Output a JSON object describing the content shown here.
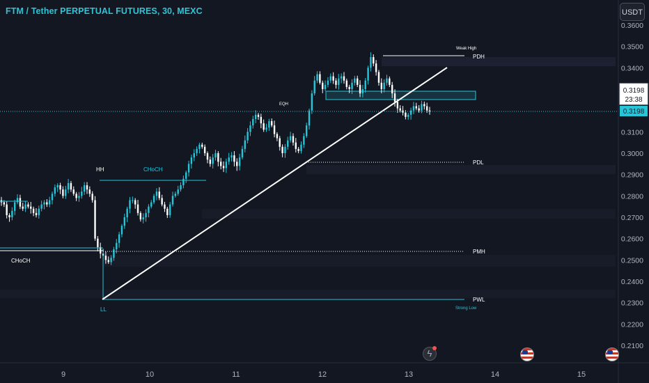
{
  "header": {
    "title": "FTM / Tether PERPETUAL FUTURES, 30, MEXC",
    "currency_button": "USDT"
  },
  "colors": {
    "background": "#131722",
    "up": "#26c6da",
    "down": "#ffffff",
    "structure_line": "#26c6da",
    "trendline": "#ffffff",
    "text": "#ffffff",
    "price_badge": "#26c6da"
  },
  "price_axis": {
    "ticks": [
      "0.3600",
      "0.3500",
      "0.3400",
      "0.3300",
      "0.3200",
      "0.3100",
      "0.3000",
      "0.2900",
      "0.2800",
      "0.2700",
      "0.2600",
      "0.2500",
      "0.2400",
      "0.2300",
      "0.2200",
      "0.2100"
    ],
    "current_price_box": "0.3198",
    "countdown": "23:38",
    "last_price_badge": "0.3198"
  },
  "time_axis": {
    "ticks": [
      "9",
      "10",
      "11",
      "12",
      "13",
      "14",
      "15"
    ]
  },
  "annotations": {
    "weak_high": "Weak High",
    "pdh": "PDH",
    "eqh": "EQH",
    "hh": "HH",
    "choch_upper": "CHoCH",
    "choch_lower": "CHoCH",
    "pdl": "PDL",
    "pmh": "PMH",
    "pwl": "PWL",
    "strong_low": "Strong Low",
    "ll": "LL"
  },
  "event_icons": [
    "lightning-icon",
    "us-flag-icon",
    "us-flag-icon"
  ],
  "chart_data": {
    "type": "candlestick",
    "title": "FTM / Tether PERPETUAL FUTURES, 30, MEXC",
    "y_range": [
      0.2,
      0.365
    ],
    "y_scale": "linear",
    "x_ticks": [
      "9",
      "10",
      "11",
      "12",
      "13",
      "14",
      "15"
    ],
    "last_price": 0.3198,
    "grid": false,
    "levels": [
      {
        "label": "PDH",
        "price": 0.3455
      },
      {
        "label": "PDL",
        "price": 0.296
      },
      {
        "label": "PMH",
        "price": 0.2545
      },
      {
        "label": "PWL",
        "price": 0.232
      }
    ],
    "close_path": [
      0.277,
      0.276,
      0.271,
      0.27,
      0.273,
      0.277,
      0.279,
      0.275,
      0.274,
      0.276,
      0.275,
      0.274,
      0.272,
      0.271,
      0.274,
      0.276,
      0.277,
      0.276,
      0.278,
      0.281,
      0.284,
      0.285,
      0.283,
      0.28,
      0.283,
      0.286,
      0.283,
      0.281,
      0.279,
      0.28,
      0.282,
      0.285,
      0.283,
      0.281,
      0.278,
      0.26,
      0.256,
      0.253,
      0.252,
      0.25,
      0.249,
      0.251,
      0.255,
      0.258,
      0.262,
      0.266,
      0.27,
      0.274,
      0.278,
      0.278,
      0.276,
      0.272,
      0.269,
      0.27,
      0.272,
      0.275,
      0.277,
      0.28,
      0.282,
      0.279,
      0.276,
      0.274,
      0.271,
      0.276,
      0.28,
      0.281,
      0.283,
      0.285,
      0.288,
      0.291,
      0.295,
      0.298,
      0.3,
      0.302,
      0.304,
      0.303,
      0.3,
      0.297,
      0.295,
      0.298,
      0.3,
      0.296,
      0.294,
      0.293,
      0.296,
      0.298,
      0.299,
      0.296,
      0.294,
      0.298,
      0.302,
      0.306,
      0.31,
      0.313,
      0.316,
      0.318,
      0.317,
      0.314,
      0.311,
      0.312,
      0.315,
      0.313,
      0.309,
      0.307,
      0.303,
      0.3,
      0.303,
      0.306,
      0.308,
      0.305,
      0.302,
      0.301,
      0.304,
      0.308,
      0.313,
      0.32,
      0.328,
      0.334,
      0.337,
      0.333,
      0.33,
      0.332,
      0.334,
      0.336,
      0.334,
      0.332,
      0.335,
      0.336,
      0.334,
      0.331,
      0.33,
      0.333,
      0.335,
      0.332,
      0.328,
      0.33,
      0.334,
      0.34,
      0.345,
      0.342,
      0.338,
      0.333,
      0.33,
      0.333,
      0.335,
      0.332,
      0.328,
      0.324,
      0.321,
      0.32,
      0.319,
      0.317,
      0.318,
      0.32,
      0.322,
      0.321,
      0.32,
      0.323,
      0.322,
      0.32,
      0.3198
    ]
  }
}
